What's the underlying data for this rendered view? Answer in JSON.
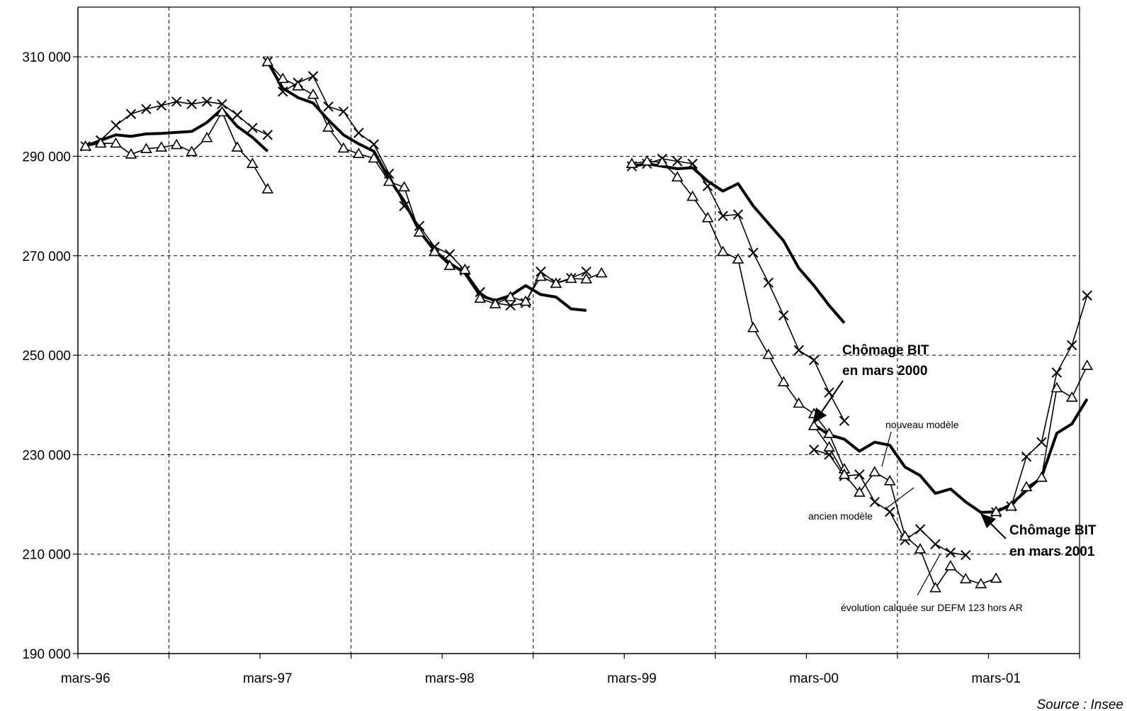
{
  "chart_data": {
    "type": "line",
    "title": "",
    "xlabel": "",
    "ylabel": "",
    "ylim": [
      190000,
      320000
    ],
    "grid": true,
    "y_ticks": [
      190000,
      210000,
      230000,
      250000,
      270000,
      290000,
      310000
    ],
    "y_tick_labels": [
      "190 000",
      "210 000",
      "230 000",
      "250 000",
      "270 000",
      "290 000",
      "310 000"
    ],
    "x_tick_labels": [
      "mars-96",
      "mars-97",
      "mars-98",
      "mars-99",
      "mars-00",
      "mars-01"
    ],
    "x_unit": "months since mars-96",
    "x_range": [
      -0.5,
      65.5
    ],
    "source": "Source :  Insee",
    "annotations": {
      "bit2000_line1": "Chômage BIT",
      "bit2000_line2": "en mars 2000",
      "bit2001_line1": "Chômage BIT",
      "bit2001_line2": "en mars 2001",
      "nouveau": "nouveau modèle",
      "ancien": "ancien modèle",
      "evolution": "évolution calquée sur DEFM 123 hors AR"
    },
    "series": [
      {
        "name": "évolution calquée sur DEFM 123 hors AR",
        "style": "bold",
        "segments": [
          {
            "x_start": 0,
            "values": [
              292000,
              293200,
              294300,
              294000,
              294500,
              294600,
              294800,
              295000,
              296800,
              299500,
              296000,
              293800,
              291000
            ]
          },
          {
            "x_start": 12,
            "values": [
              309000,
              303700,
              301800,
              300700,
              297300,
              294300,
              292500,
              291000,
              285500,
              281000,
              275000,
              271000,
              268500,
              266500,
              262000,
              261000,
              262000,
              264000,
              262200,
              261700,
              259300,
              259000
            ]
          },
          {
            "x_start": 36,
            "values": [
              288000,
              288500,
              288000,
              287500,
              287700,
              285000,
              283000,
              284500,
              280000,
              276500,
              273000,
              267500,
              264000,
              260000,
              256500
            ]
          },
          {
            "x_start": 48,
            "values": [
              236000,
              234000,
              233100,
              230700,
              232500,
              231900,
              227500,
              225800,
              222200,
              223100,
              220500,
              218400,
              218500,
              220000,
              222800,
              225500,
              234300,
              236200,
              241200
            ]
          }
        ]
      },
      {
        "name": "nouveau modèle",
        "marker": "x",
        "segments": [
          {
            "x_start": 0,
            "values": [
              292000,
              293200,
              296200,
              298500,
              299500,
              300200,
              301000,
              300500,
              301000,
              300500,
              298300,
              295700,
              294300
            ]
          },
          {
            "x_start": 12,
            "values": [
              309000,
              303000,
              304800,
              306100,
              300000,
              299000,
              294700,
              292400,
              286500,
              280000,
              276000,
              271800,
              270300,
              267000,
              262700,
              260500,
              260000,
              260500,
              266800,
              264500,
              265500,
              266800
            ]
          },
          {
            "x_start": 36,
            "values": [
              288000,
              288500,
              289500,
              289000,
              288500,
              284000,
              278000,
              278300,
              270600,
              264600,
              258000,
              251000,
              249000,
              242500,
              236800
            ]
          },
          {
            "x_start": 48,
            "values": [
              231000,
              230000,
              225700,
              226000,
              220500,
              218500,
              212800,
              215000,
              212000,
              210300,
              209800
            ]
          },
          {
            "x_start": 60,
            "values": [
              218400,
              219600,
              229600,
              232500,
              246500,
              252000,
              262000
            ]
          }
        ]
      },
      {
        "name": "ancien modèle",
        "marker": "triangle",
        "segments": [
          {
            "x_start": 0,
            "values": [
              292000,
              292600,
              292600,
              290400,
              291500,
              291800,
              292300,
              290900,
              293700,
              298900,
              291800,
              288500,
              283400
            ]
          },
          {
            "x_start": 12,
            "values": [
              309000,
              305600,
              304100,
              302400,
              295800,
              291600,
              290500,
              289600,
              284900,
              283800,
              274700,
              270800,
              268000,
              267200,
              261400,
              260300,
              261700,
              260800,
              265800,
              264400,
              265400,
              265300,
              266500
            ]
          },
          {
            "x_start": 36,
            "values": [
              288500,
              289000,
              288800,
              285800,
              281900,
              277600,
              270800,
              269300,
              255500,
              250100,
              244600,
              240300,
              238200,
              234200,
              227100
            ]
          },
          {
            "x_start": 48,
            "values": [
              235800,
              231500,
              226000,
              222400,
              226500,
              224700,
              213600,
              211000,
              203200,
              207600,
              205000,
              204000,
              205100
            ]
          },
          {
            "x_start": 60,
            "values": [
              218500,
              219600,
              223500,
              225400,
              243400,
              241500,
              247900
            ]
          }
        ]
      }
    ]
  }
}
